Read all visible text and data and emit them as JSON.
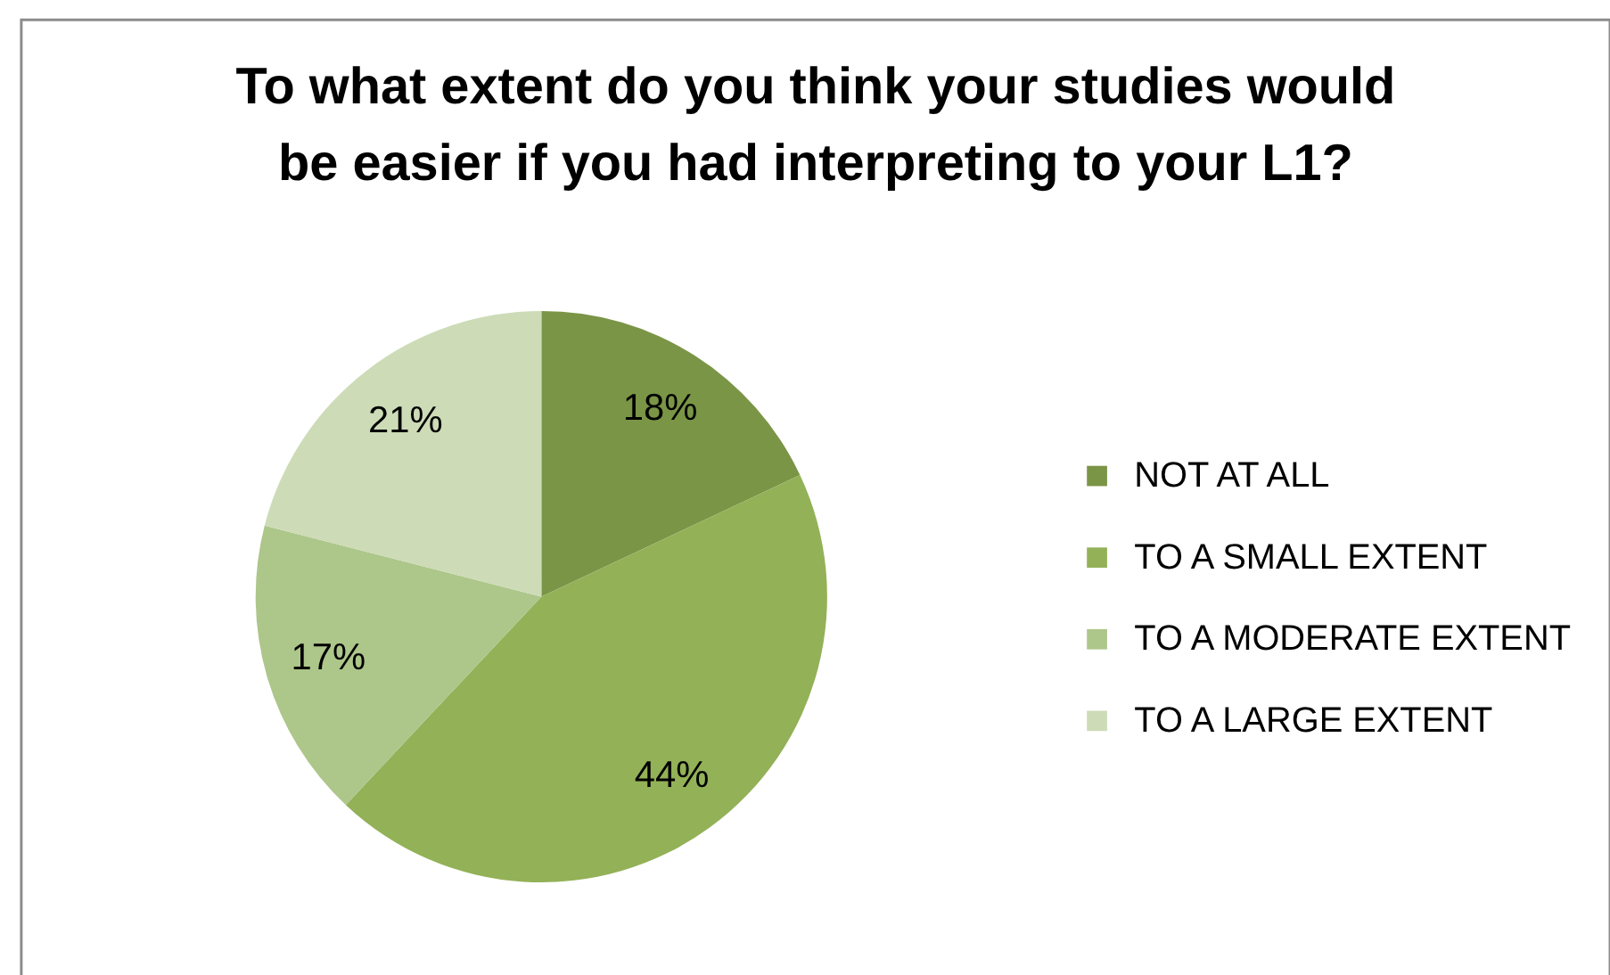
{
  "chart_data": {
    "type": "pie",
    "title": "To what extent do you think your studies would be easier if you had interpreting to your L1?",
    "categories": [
      "NOT AT ALL",
      "TO A SMALL EXTENT",
      "TO A MODERATE EXTENT",
      "TO A LARGE EXTENT"
    ],
    "values": [
      18,
      44,
      17,
      21
    ],
    "colors": [
      "#7a9546",
      "#93b157",
      "#adc68a",
      "#cddbb7"
    ],
    "value_labels": [
      "18%",
      "44%",
      "17%",
      "21%"
    ],
    "legend": "right"
  }
}
